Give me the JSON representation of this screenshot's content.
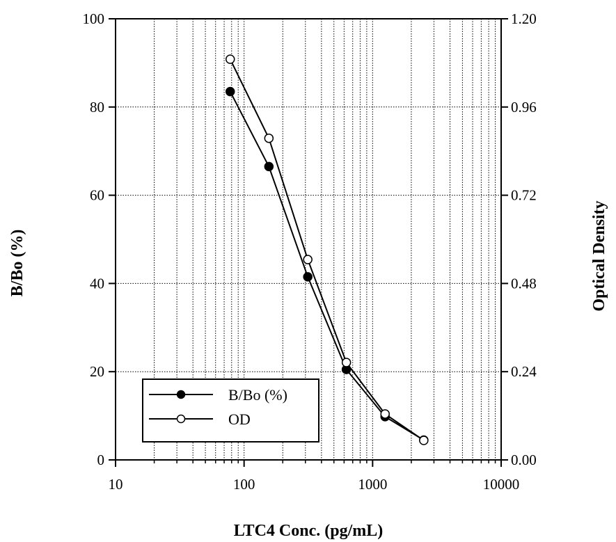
{
  "chart_data": {
    "type": "line",
    "x_scale": "log",
    "xlabel": "LTC4 Conc. (pg/mL)",
    "ylabel": "B/Bo (%)",
    "y2label": "Optical Density",
    "xlim": [
      10,
      10000
    ],
    "ylim": [
      0,
      100
    ],
    "y2lim": [
      0,
      1.2
    ],
    "x_ticks": [
      "10",
      "100",
      "1000",
      "10000"
    ],
    "y_ticks": [
      "0",
      "20",
      "40",
      "60",
      "80",
      "100"
    ],
    "y2_ticks": [
      "0.00",
      "0.24",
      "0.48",
      "0.72",
      "0.96",
      "1.20"
    ],
    "grid": true,
    "legend_position": "bottom-left",
    "series": [
      {
        "name": "B/Bo (%)",
        "axis": "left",
        "marker": "filled-circle",
        "x": [
          78,
          156,
          313,
          625,
          1250,
          2500
        ],
        "y": [
          83.5,
          66.5,
          41.5,
          20.5,
          9.8,
          4.5
        ]
      },
      {
        "name": "OD",
        "axis": "right",
        "marker": "open-circle",
        "x": [
          78,
          156,
          313,
          625,
          1250,
          2500
        ],
        "y": [
          1.09,
          0.875,
          0.545,
          0.265,
          0.125,
          0.053
        ]
      }
    ]
  }
}
